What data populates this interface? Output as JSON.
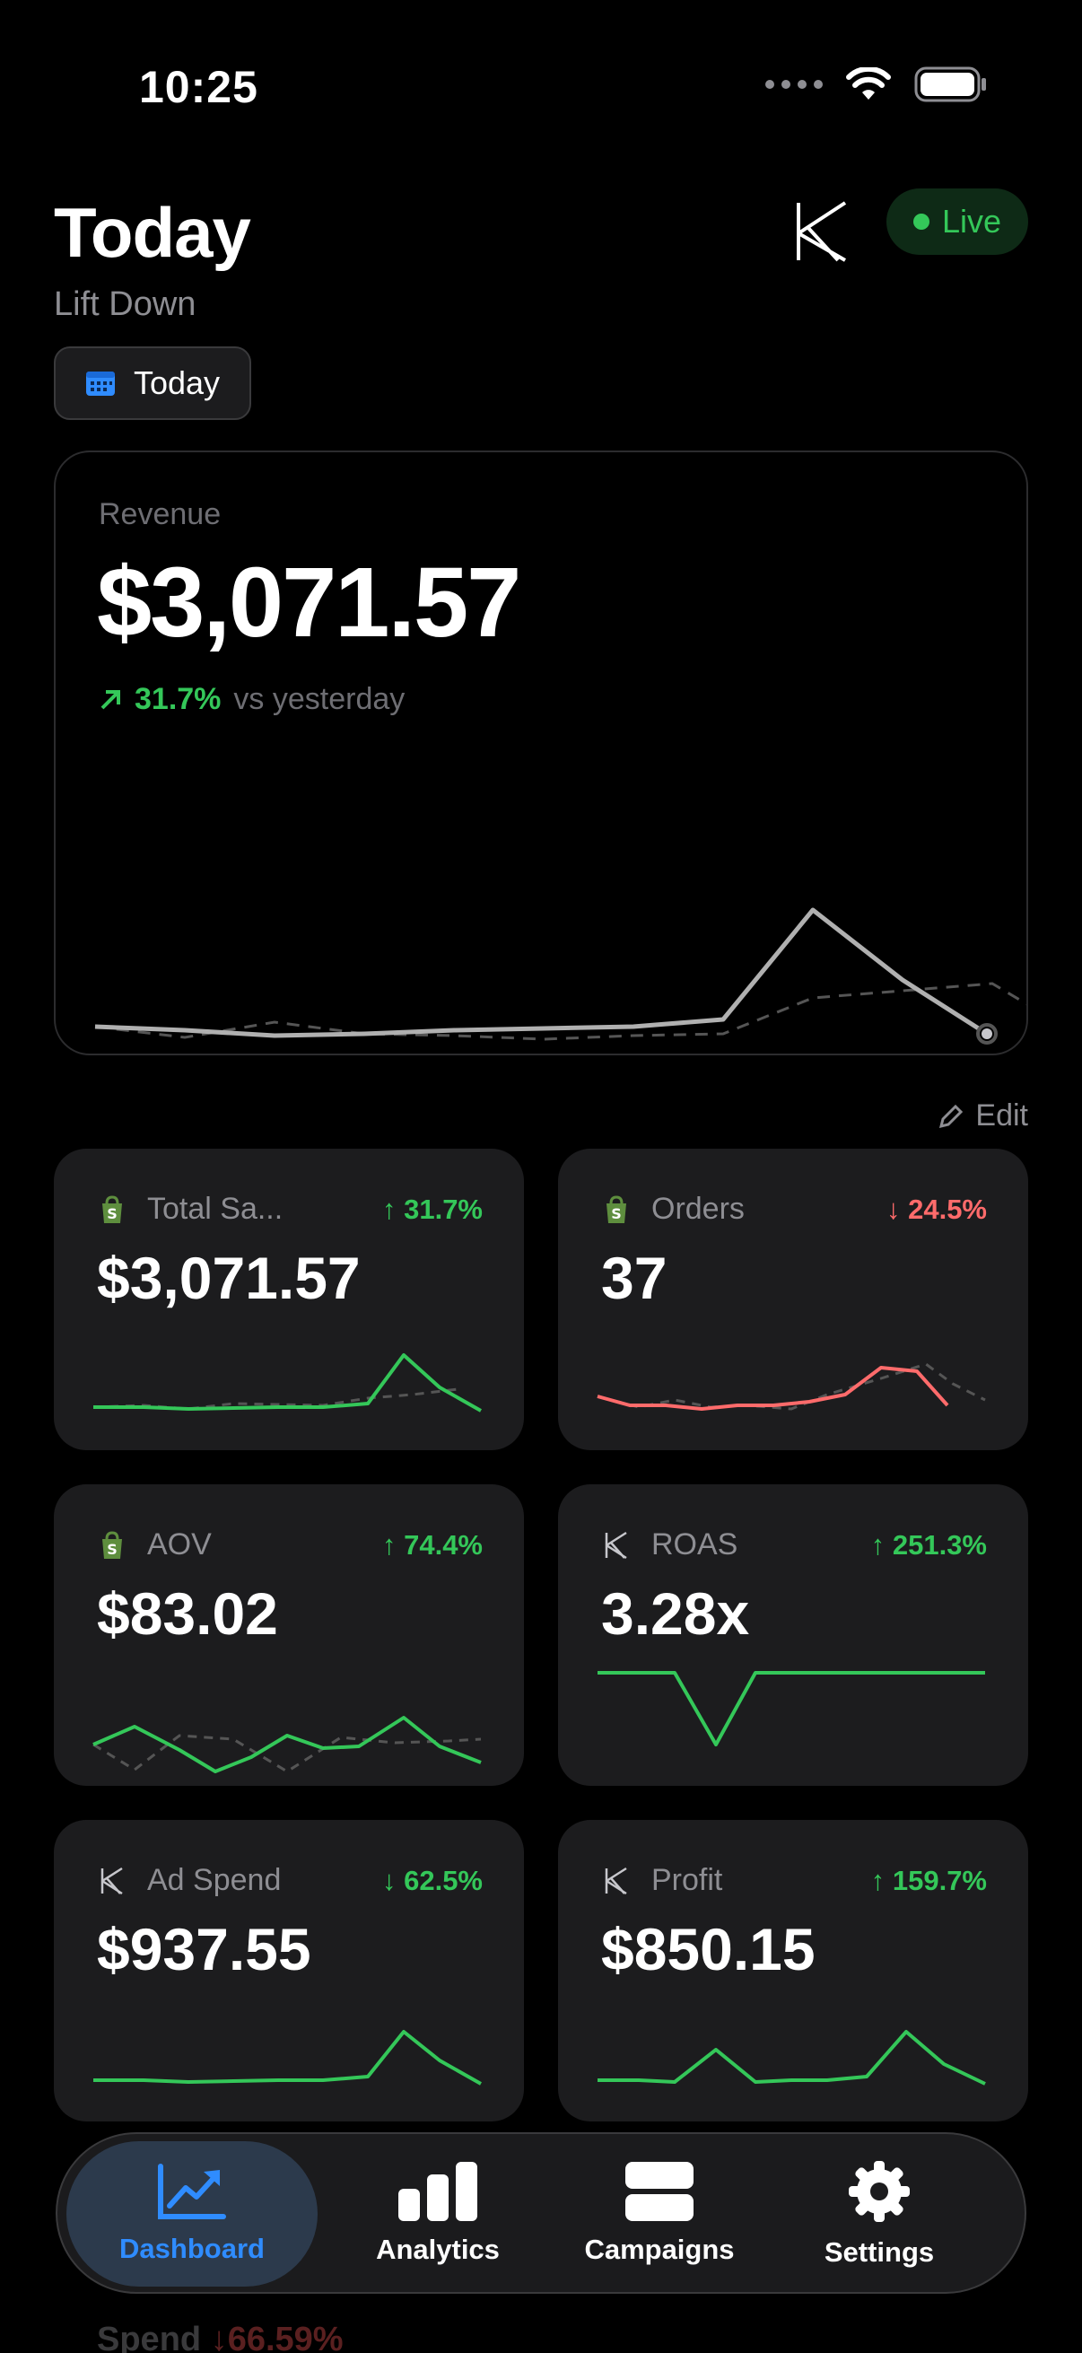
{
  "status_bar": {
    "time": "10:25"
  },
  "header": {
    "title": "Today",
    "subtitle": "Lift Down",
    "live_label": "Live",
    "date_button": "Today"
  },
  "revenue": {
    "label": "Revenue",
    "value": "$3,071.57",
    "change": "31.7%",
    "compare": "vs yesterday"
  },
  "edit_label": "Edit",
  "metrics": [
    {
      "label": "Total Sa...",
      "change": "31.7%",
      "direction": "up",
      "value": "$3,071.57",
      "icon": "shopify-bag-icon"
    },
    {
      "label": "Orders",
      "change": "24.5%",
      "direction": "down",
      "value": "37",
      "icon": "shopify-bag-icon"
    },
    {
      "label": "AOV",
      "change": "74.4%",
      "direction": "up",
      "value": "$83.02",
      "icon": "shopify-bag-icon"
    },
    {
      "label": "ROAS",
      "change": "251.3%",
      "direction": "up",
      "value": "3.28x",
      "icon": "brand-k-icon"
    },
    {
      "label": "Ad Spend",
      "change": "62.5%",
      "direction": "down",
      "value": "$937.55",
      "icon": "brand-k-icon"
    },
    {
      "label": "Profit",
      "change": "159.7%",
      "direction": "up",
      "value": "$850.15",
      "icon": "brand-k-icon"
    }
  ],
  "below_nav": {
    "label": "Spend",
    "change": "66.59%"
  },
  "tabs": [
    {
      "label": "Dashboard",
      "icon": "chart-trend-icon",
      "active": true
    },
    {
      "label": "Analytics",
      "icon": "bar-chart-icon",
      "active": false
    },
    {
      "label": "Campaigns",
      "icon": "stack-icon",
      "active": false
    },
    {
      "label": "Settings",
      "icon": "gear-icon",
      "active": false
    }
  ],
  "colors": {
    "positive": "#34c759",
    "negative": "#ff6b6b",
    "accent": "#2f8cff",
    "card": "#1c1c1e"
  }
}
